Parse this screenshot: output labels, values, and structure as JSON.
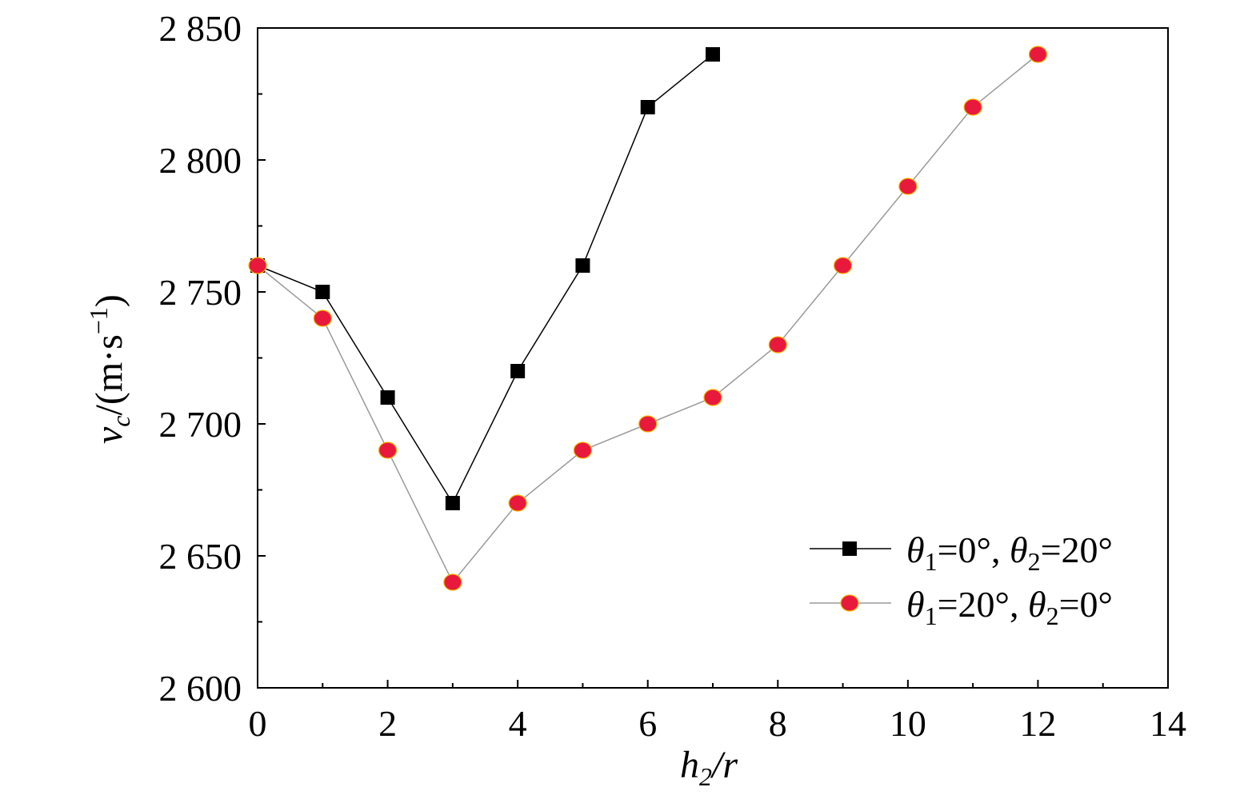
{
  "chart_data": {
    "type": "line",
    "xlabel": "h2/r",
    "ylabel": "vc/(m·s−1)",
    "xlim": [
      0,
      14
    ],
    "ylim": [
      2600,
      2850
    ],
    "x_ticks": [
      0,
      2,
      4,
      6,
      8,
      10,
      12,
      14
    ],
    "y_ticks": [
      2600,
      2650,
      2700,
      2750,
      2800,
      2850
    ],
    "x_tick_labels": [
      "0",
      "2",
      "4",
      "6",
      "8",
      "10",
      "12",
      "14"
    ],
    "y_tick_labels": [
      "2 600",
      "2 650",
      "2 700",
      "2 750",
      "2 800",
      "2 850"
    ],
    "grid": false,
    "legend_position": "bottom-right",
    "series": [
      {
        "name": "θ1=0°, θ2=20°",
        "marker": "square",
        "color": "#000000",
        "line_color": "#000000",
        "x": [
          0,
          1,
          2,
          3,
          4,
          5,
          6,
          7
        ],
        "y": [
          2760,
          2750,
          2710,
          2670,
          2720,
          2760,
          2820,
          2840
        ]
      },
      {
        "name": "θ1=20°, θ2=0°",
        "marker": "circle",
        "color": "#e8193c",
        "line_color": "#9a9a9a",
        "x": [
          0,
          1,
          2,
          3,
          4,
          5,
          6,
          7,
          8,
          9,
          10,
          11,
          12
        ],
        "y": [
          2760,
          2740,
          2690,
          2640,
          2670,
          2690,
          2700,
          2710,
          2730,
          2760,
          2790,
          2820,
          2840
        ]
      }
    ]
  },
  "labels": {
    "x_main": "h",
    "x_sub": "2",
    "x_rest": "/r",
    "y_main": "v",
    "y_sub": "c",
    "y_rest": "/(m·s",
    "y_sup": "−1",
    "y_close": ")"
  },
  "legend": {
    "s1": {
      "t1": "θ",
      "sub1": "1",
      "mid": "=0°, ",
      "t2": "θ",
      "sub2": "2",
      "end": "=20°"
    },
    "s2": {
      "t1": "θ",
      "sub1": "1",
      "mid": "=20°, ",
      "t2": "θ",
      "sub2": "2",
      "end": "=0°"
    }
  }
}
